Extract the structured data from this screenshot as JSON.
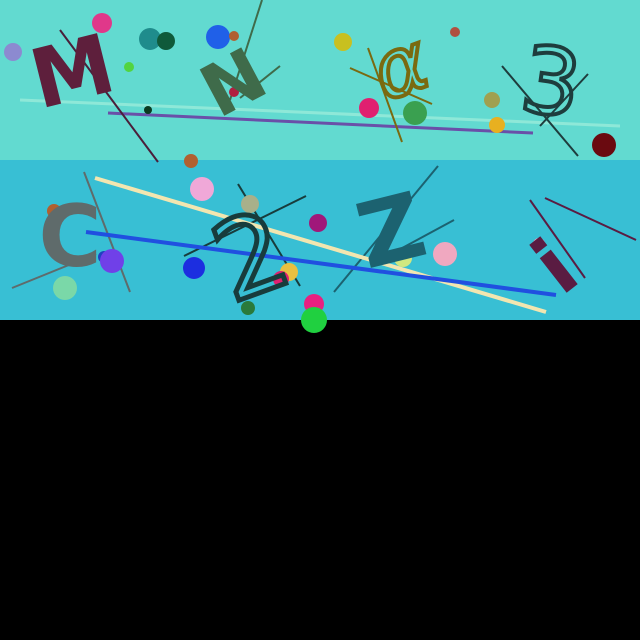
{
  "characters": [
    {
      "id": "char-m",
      "text": "M",
      "color": "#5e1f3c"
    },
    {
      "id": "char-n",
      "text": "N",
      "color": "#3f6b4a"
    },
    {
      "id": "char-alpha",
      "text": "α",
      "color": "#7a6a10"
    },
    {
      "id": "char-3",
      "text": "3",
      "color": "#1e3d3d"
    },
    {
      "id": "char-c",
      "text": "C",
      "color": "#5f6b6b"
    },
    {
      "id": "char-2",
      "text": "2",
      "color": "#183c3c"
    },
    {
      "id": "char-z",
      "text": "Z",
      "color": "#1c6270"
    },
    {
      "id": "char-i",
      "text": "i",
      "color": "#5a1c42"
    }
  ],
  "colors": {
    "top_band": "#62dad0",
    "middle_band": "#38bfd4",
    "bottom_band": "#000000"
  }
}
